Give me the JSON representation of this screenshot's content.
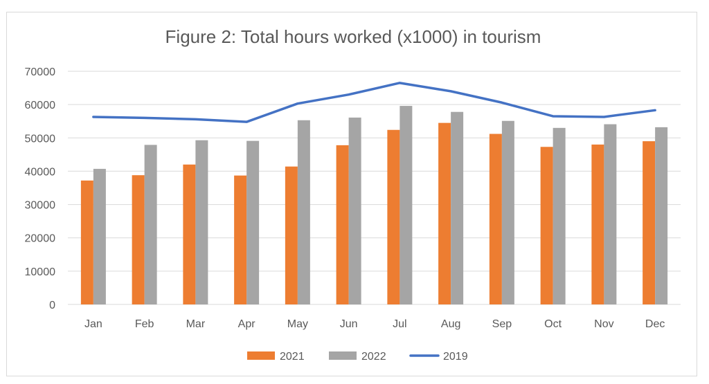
{
  "chart_data": {
    "type": "bar",
    "title": "Figure 2: Total hours worked (x1000) in tourism",
    "categories": [
      "Jan",
      "Feb",
      "Mar",
      "Apr",
      "May",
      "Jun",
      "Jul",
      "Aug",
      "Sep",
      "Oct",
      "Nov",
      "Dec"
    ],
    "y_ticks": [
      "0",
      "10000",
      "20000",
      "30000",
      "40000",
      "50000",
      "60000",
      "70000"
    ],
    "ylim": [
      0,
      70000
    ],
    "grid": true,
    "legend_position": "bottom",
    "series": [
      {
        "name": "2021",
        "type": "bar",
        "color": "#ed7d31",
        "values": [
          37200,
          38800,
          42000,
          38700,
          41400,
          47800,
          52400,
          54500,
          51200,
          47300,
          48000,
          49000
        ]
      },
      {
        "name": "2022",
        "type": "bar",
        "color": "#a5a5a5",
        "values": [
          40700,
          47900,
          49300,
          49100,
          55300,
          56100,
          59600,
          57800,
          55100,
          53000,
          54100,
          53200
        ]
      },
      {
        "name": "2019",
        "type": "line",
        "color": "#4472c4",
        "values": [
          56300,
          56000,
          55600,
          54800,
          60300,
          63000,
          66500,
          64000,
          60600,
          56500,
          56300,
          58300
        ]
      }
    ]
  }
}
